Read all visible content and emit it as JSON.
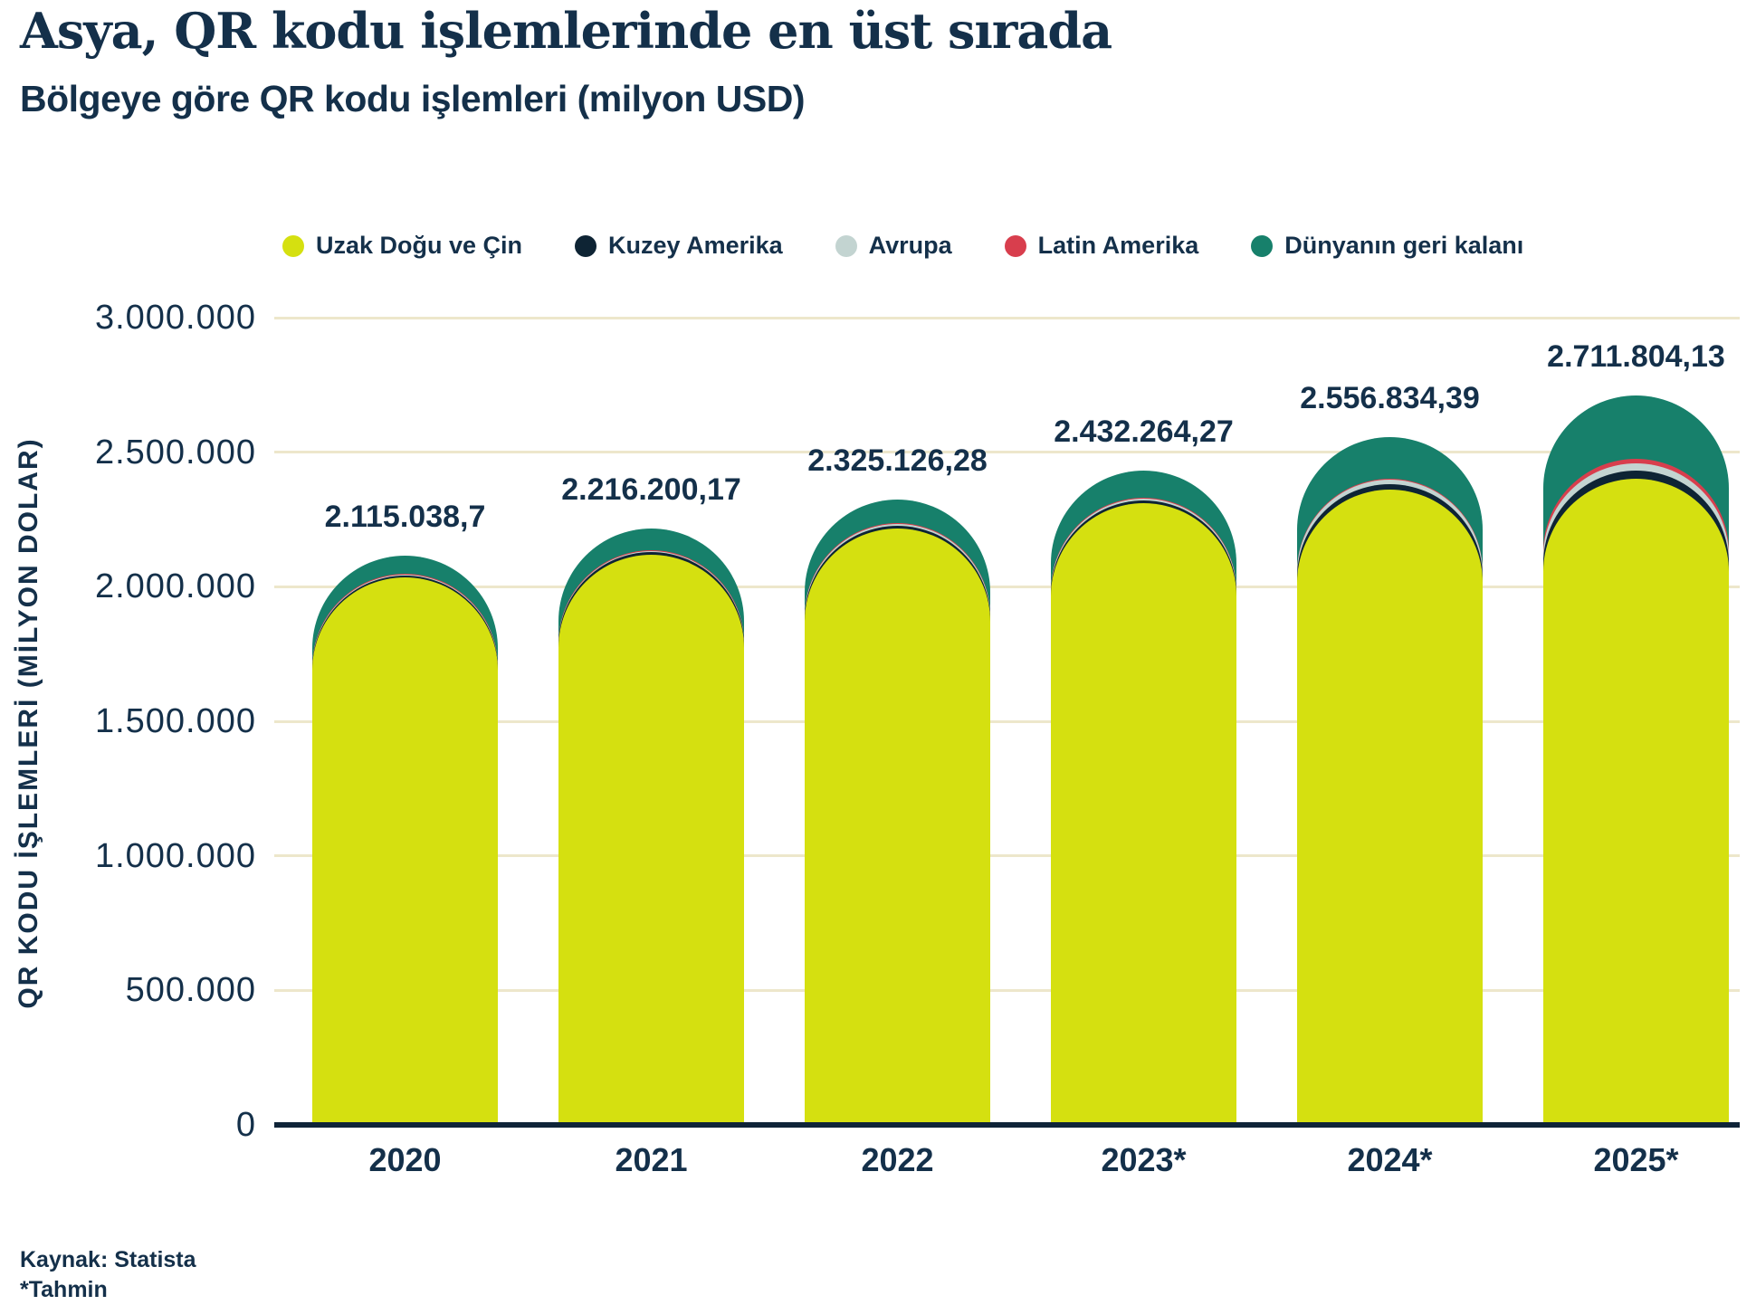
{
  "title": "Asya, QR kodu işlemlerinde en üst sırada",
  "subtitle": "Bölgeye göre QR kodu işlemleri (milyon USD)",
  "source": {
    "line1": "Kaynak: Statista",
    "line2": "*Tahmin"
  },
  "colors": {
    "text_navy": "#14304a",
    "background": "#ffffff",
    "gridline": "#ede7cb",
    "axis_line": "#0f2438",
    "far_east_china": "#d5e010",
    "north_america": "#0e2434",
    "europe": "#c3d4d1",
    "latin_america": "#d83e4d",
    "rest_of_world": "#17806b"
  },
  "chart_data": {
    "type": "bar",
    "stacked": true,
    "title": "Asya, QR kodu işlemlerinde en üst sırada",
    "subtitle": "Bölgeye göre QR kodu işlemleri (milyon USD)",
    "categories": [
      "2020",
      "2021",
      "2022",
      "2023*",
      "2024*",
      "2025*"
    ],
    "series": [
      {
        "name": "Uzak Doğu ve Çin",
        "color": "#d5e010",
        "values": [
          2035000,
          2120000,
          2215000,
          2310000,
          2360000,
          2400000
        ]
      },
      {
        "name": "Kuzey Amerika",
        "color": "#0e2434",
        "values": [
          7000,
          9000,
          12000,
          12000,
          20000,
          32000
        ]
      },
      {
        "name": "Avrupa",
        "color": "#c3d4d1",
        "values": [
          4000,
          5000,
          6126.28,
          6264.27,
          17834.39,
          25000
        ]
      },
      {
        "name": "Latin Amerika",
        "color": "#d83e4d",
        "values": [
          3038.7,
          2200.17,
          2000,
          2000,
          2000,
          19804.13
        ]
      },
      {
        "name": "Dünyanın geri kalanı",
        "color": "#17806b",
        "values": [
          66000,
          80000,
          90000,
          102000,
          157000,
          235000
        ]
      }
    ],
    "totals": [
      2115038.7,
      2216200.17,
      2325126.28,
      2432264.27,
      2556834.39,
      2711804.13
    ],
    "total_labels": [
      "2.115.038,7",
      "2.216.200,17",
      "2.325.126,28",
      "2.432.264,27",
      "2.556.834,39",
      "2.711.804,13"
    ],
    "ylabel": "QR KODU İŞLEMLERİ (MİLYON DOLAR)",
    "ylim": [
      0,
      3000000
    ],
    "ytick_labels": [
      "3.000.000",
      "2.500.000",
      "2.000.000",
      "1.500.000",
      "1.000.000",
      "500.000",
      "0"
    ],
    "legend_position": "top",
    "grid": true
  }
}
